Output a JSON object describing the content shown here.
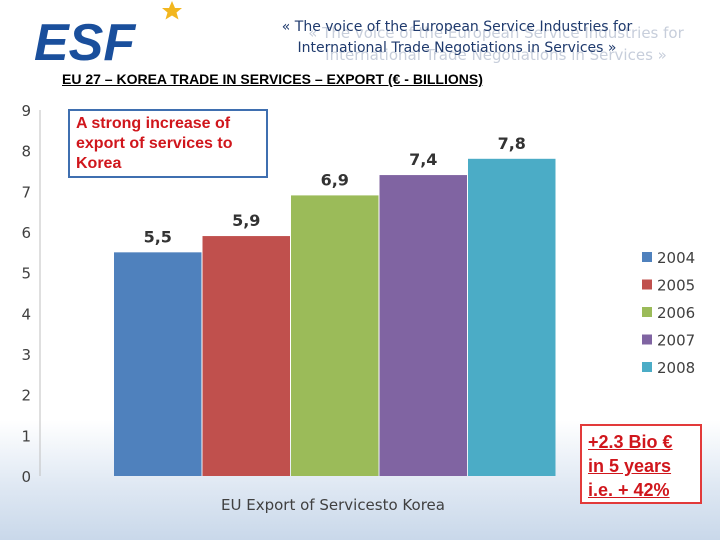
{
  "header": {
    "logo_text": "ESF",
    "line1": "« The voice of the European Service Industries for",
    "line2": "International Trade Negotiations in Services »"
  },
  "slide_title": "EU 27 – KOREA TRADE IN SERVICES – EXPORT (€ - BILLIONS)",
  "callout": "A strong increase of export of services to Korea",
  "stat_box": {
    "line1": "+2.3 Bio €",
    "line2": "in 5 years",
    "line3": "i.e. + 42%"
  },
  "colors": {
    "logo_blue": "#1a4f9c",
    "logo_star": "#f2b61f",
    "header_text": "#1f3a6d",
    "accent_red": "#d0161c"
  },
  "chart_data": {
    "type": "bar",
    "title": "",
    "xlabel": "EU Export of Servicesto Korea",
    "ylabel": "",
    "ylim": [
      0,
      9
    ],
    "yticks": [
      "0",
      "1",
      "2",
      "3",
      "4",
      "5",
      "6",
      "7",
      "8",
      "9"
    ],
    "categories": [
      "2004",
      "2005",
      "2006",
      "2007",
      "2008"
    ],
    "values": [
      5.5,
      5.9,
      6.9,
      7.4,
      7.8
    ],
    "value_labels": [
      "5,5",
      "5,9",
      "6,9",
      "7,4",
      "7,8"
    ],
    "colors": [
      "#4f81bd",
      "#c0504d",
      "#9bbb59",
      "#8064a2",
      "#4bacc6"
    ],
    "legend": [
      "2004",
      "2005",
      "2006",
      "2007",
      "2008"
    ],
    "legend_position": "right",
    "grid": false
  }
}
